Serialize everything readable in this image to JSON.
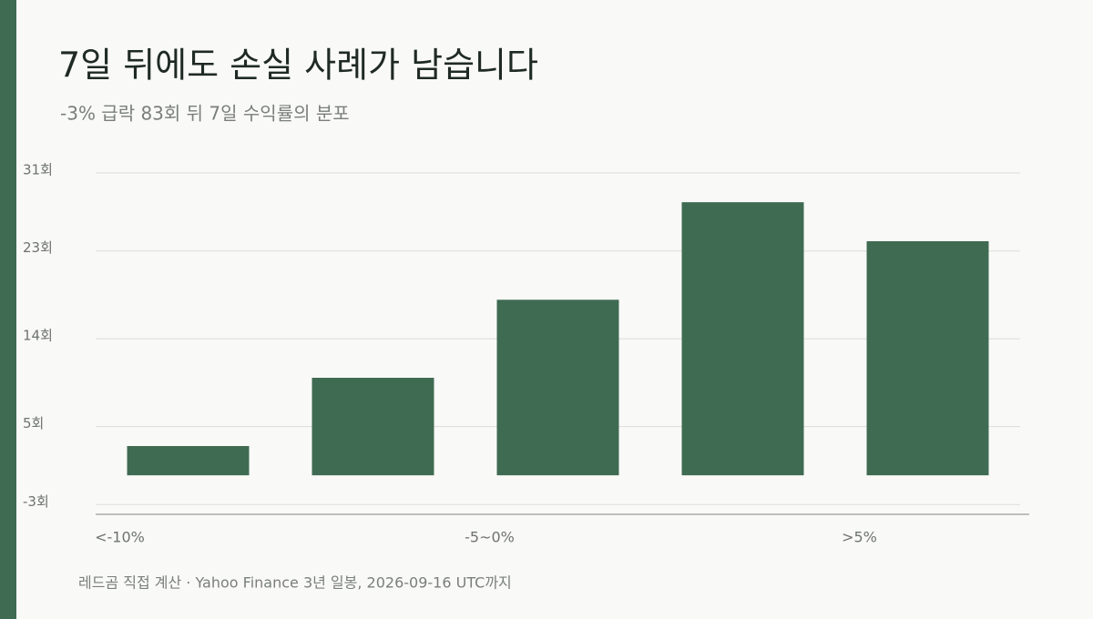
{
  "chart_data": {
    "type": "bar",
    "title": "7일 뒤에도 손실 사례가 남습니다",
    "subtitle": "-3% 급락 83회 뒤 7일 수익률의 분포",
    "categories": [
      "<-10%",
      null,
      "-5~0%",
      null,
      ">5%"
    ],
    "values": [
      3,
      10,
      18,
      28,
      24
    ],
    "color": "#3f6b52",
    "ylim": [
      -4,
      31
    ],
    "yticks": [
      {
        "value": -3,
        "label": "-3회"
      },
      {
        "value": 5,
        "label": "5회"
      },
      {
        "value": 14,
        "label": "14회"
      },
      {
        "value": 23,
        "label": "23회"
      },
      {
        "value": 31,
        "label": "31회"
      }
    ],
    "grid": true,
    "source": "레드곰 직접 계산 ·  Yahoo Finance 3년 일봉, 2026-09-16 UTC까지"
  }
}
